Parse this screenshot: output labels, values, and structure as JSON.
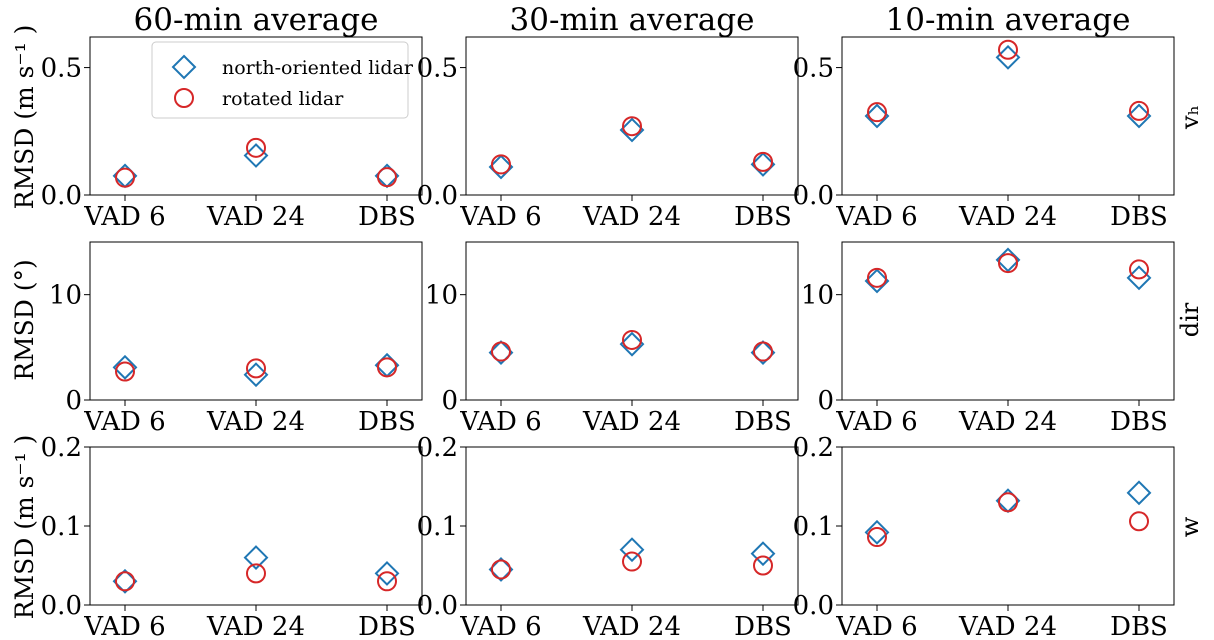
{
  "figure": {
    "column_titles": [
      "60-min average",
      "30-min average",
      "10-min average"
    ],
    "row_labels": [
      "vₕ",
      "dir",
      "w"
    ],
    "y_labels": [
      "RMSD (m s⁻¹ )",
      "RMSD (°)",
      "RMSD (m s⁻¹ )"
    ],
    "legend": {
      "placement": "top-right of first panel",
      "entries": [
        "north-oriented lidar",
        "rotated lidar"
      ]
    },
    "colors": {
      "north_oriented": "#1f77b4",
      "rotated": "#d62728"
    },
    "markers": {
      "north_oriented": "diamond-icon",
      "rotated": "circle-icon"
    }
  },
  "chart_data": [
    {
      "type": "scatter",
      "row": 0,
      "col": 0,
      "categories": [
        "VAD 6",
        "VAD 24",
        "DBS"
      ],
      "ylim": [
        0,
        0.62
      ],
      "yticks": [
        0.0,
        0.5
      ],
      "ytick_labels": [
        "0.0",
        "0.5"
      ],
      "series": [
        {
          "name": "north-oriented lidar",
          "values": [
            0.075,
            0.155,
            0.075
          ]
        },
        {
          "name": "rotated lidar",
          "values": [
            0.068,
            0.185,
            0.07
          ]
        }
      ]
    },
    {
      "type": "scatter",
      "row": 0,
      "col": 1,
      "categories": [
        "VAD 6",
        "VAD 24",
        "DBS"
      ],
      "ylim": [
        0,
        0.62
      ],
      "yticks": [
        0.0,
        0.5
      ],
      "ytick_labels": [
        "0.0",
        "0.5"
      ],
      "series": [
        {
          "name": "north-oriented lidar",
          "values": [
            0.11,
            0.255,
            0.12
          ]
        },
        {
          "name": "rotated lidar",
          "values": [
            0.12,
            0.27,
            0.13
          ]
        }
      ]
    },
    {
      "type": "scatter",
      "row": 0,
      "col": 2,
      "categories": [
        "VAD 6",
        "VAD 24",
        "DBS"
      ],
      "ylim": [
        0,
        0.62
      ],
      "yticks": [
        0.0,
        0.5
      ],
      "ytick_labels": [
        "0.0",
        "0.5"
      ],
      "series": [
        {
          "name": "north-oriented lidar",
          "values": [
            0.31,
            0.54,
            0.31
          ]
        },
        {
          "name": "rotated lidar",
          "values": [
            0.325,
            0.57,
            0.33
          ]
        }
      ]
    },
    {
      "type": "scatter",
      "row": 1,
      "col": 0,
      "categories": [
        "VAD 6",
        "VAD 24",
        "DBS"
      ],
      "ylim": [
        0,
        15
      ],
      "yticks": [
        0,
        10
      ],
      "ytick_labels": [
        "0",
        "10"
      ],
      "series": [
        {
          "name": "north-oriented lidar",
          "values": [
            3.1,
            2.4,
            3.3
          ]
        },
        {
          "name": "rotated lidar",
          "values": [
            2.7,
            3.0,
            3.1
          ]
        }
      ]
    },
    {
      "type": "scatter",
      "row": 1,
      "col": 1,
      "categories": [
        "VAD 6",
        "VAD 24",
        "DBS"
      ],
      "ylim": [
        0,
        15
      ],
      "yticks": [
        0,
        10
      ],
      "ytick_labels": [
        "0",
        "10"
      ],
      "series": [
        {
          "name": "north-oriented lidar",
          "values": [
            4.5,
            5.3,
            4.5
          ]
        },
        {
          "name": "rotated lidar",
          "values": [
            4.6,
            5.7,
            4.6
          ]
        }
      ]
    },
    {
      "type": "scatter",
      "row": 1,
      "col": 2,
      "categories": [
        "VAD 6",
        "VAD 24",
        "DBS"
      ],
      "ylim": [
        0,
        15
      ],
      "yticks": [
        0,
        10
      ],
      "ytick_labels": [
        "0",
        "10"
      ],
      "series": [
        {
          "name": "north-oriented lidar",
          "values": [
            11.3,
            13.3,
            11.6
          ]
        },
        {
          "name": "rotated lidar",
          "values": [
            11.6,
            13.0,
            12.4
          ]
        }
      ]
    },
    {
      "type": "scatter",
      "row": 2,
      "col": 0,
      "categories": [
        "VAD 6",
        "VAD 24",
        "DBS"
      ],
      "ylim": [
        0,
        0.2
      ],
      "yticks": [
        0.0,
        0.1,
        0.2
      ],
      "ytick_labels": [
        "0.0",
        "0.1",
        "0.2"
      ],
      "series": [
        {
          "name": "north-oriented lidar",
          "values": [
            0.03,
            0.06,
            0.04
          ]
        },
        {
          "name": "rotated lidar",
          "values": [
            0.03,
            0.04,
            0.03
          ]
        }
      ]
    },
    {
      "type": "scatter",
      "row": 2,
      "col": 1,
      "categories": [
        "VAD 6",
        "VAD 24",
        "DBS"
      ],
      "ylim": [
        0,
        0.2
      ],
      "yticks": [
        0.0,
        0.1,
        0.2
      ],
      "ytick_labels": [
        "0.0",
        "0.1",
        "0.2"
      ],
      "series": [
        {
          "name": "north-oriented lidar",
          "values": [
            0.045,
            0.07,
            0.065
          ]
        },
        {
          "name": "rotated lidar",
          "values": [
            0.045,
            0.055,
            0.05
          ]
        }
      ]
    },
    {
      "type": "scatter",
      "row": 2,
      "col": 2,
      "categories": [
        "VAD 6",
        "VAD 24",
        "DBS"
      ],
      "ylim": [
        0,
        0.2
      ],
      "yticks": [
        0.0,
        0.1,
        0.2
      ],
      "ytick_labels": [
        "0.0",
        "0.1",
        "0.2"
      ],
      "series": [
        {
          "name": "north-oriented lidar",
          "values": [
            0.092,
            0.132,
            0.142
          ]
        },
        {
          "name": "rotated lidar",
          "values": [
            0.086,
            0.13,
            0.106
          ]
        }
      ]
    }
  ]
}
